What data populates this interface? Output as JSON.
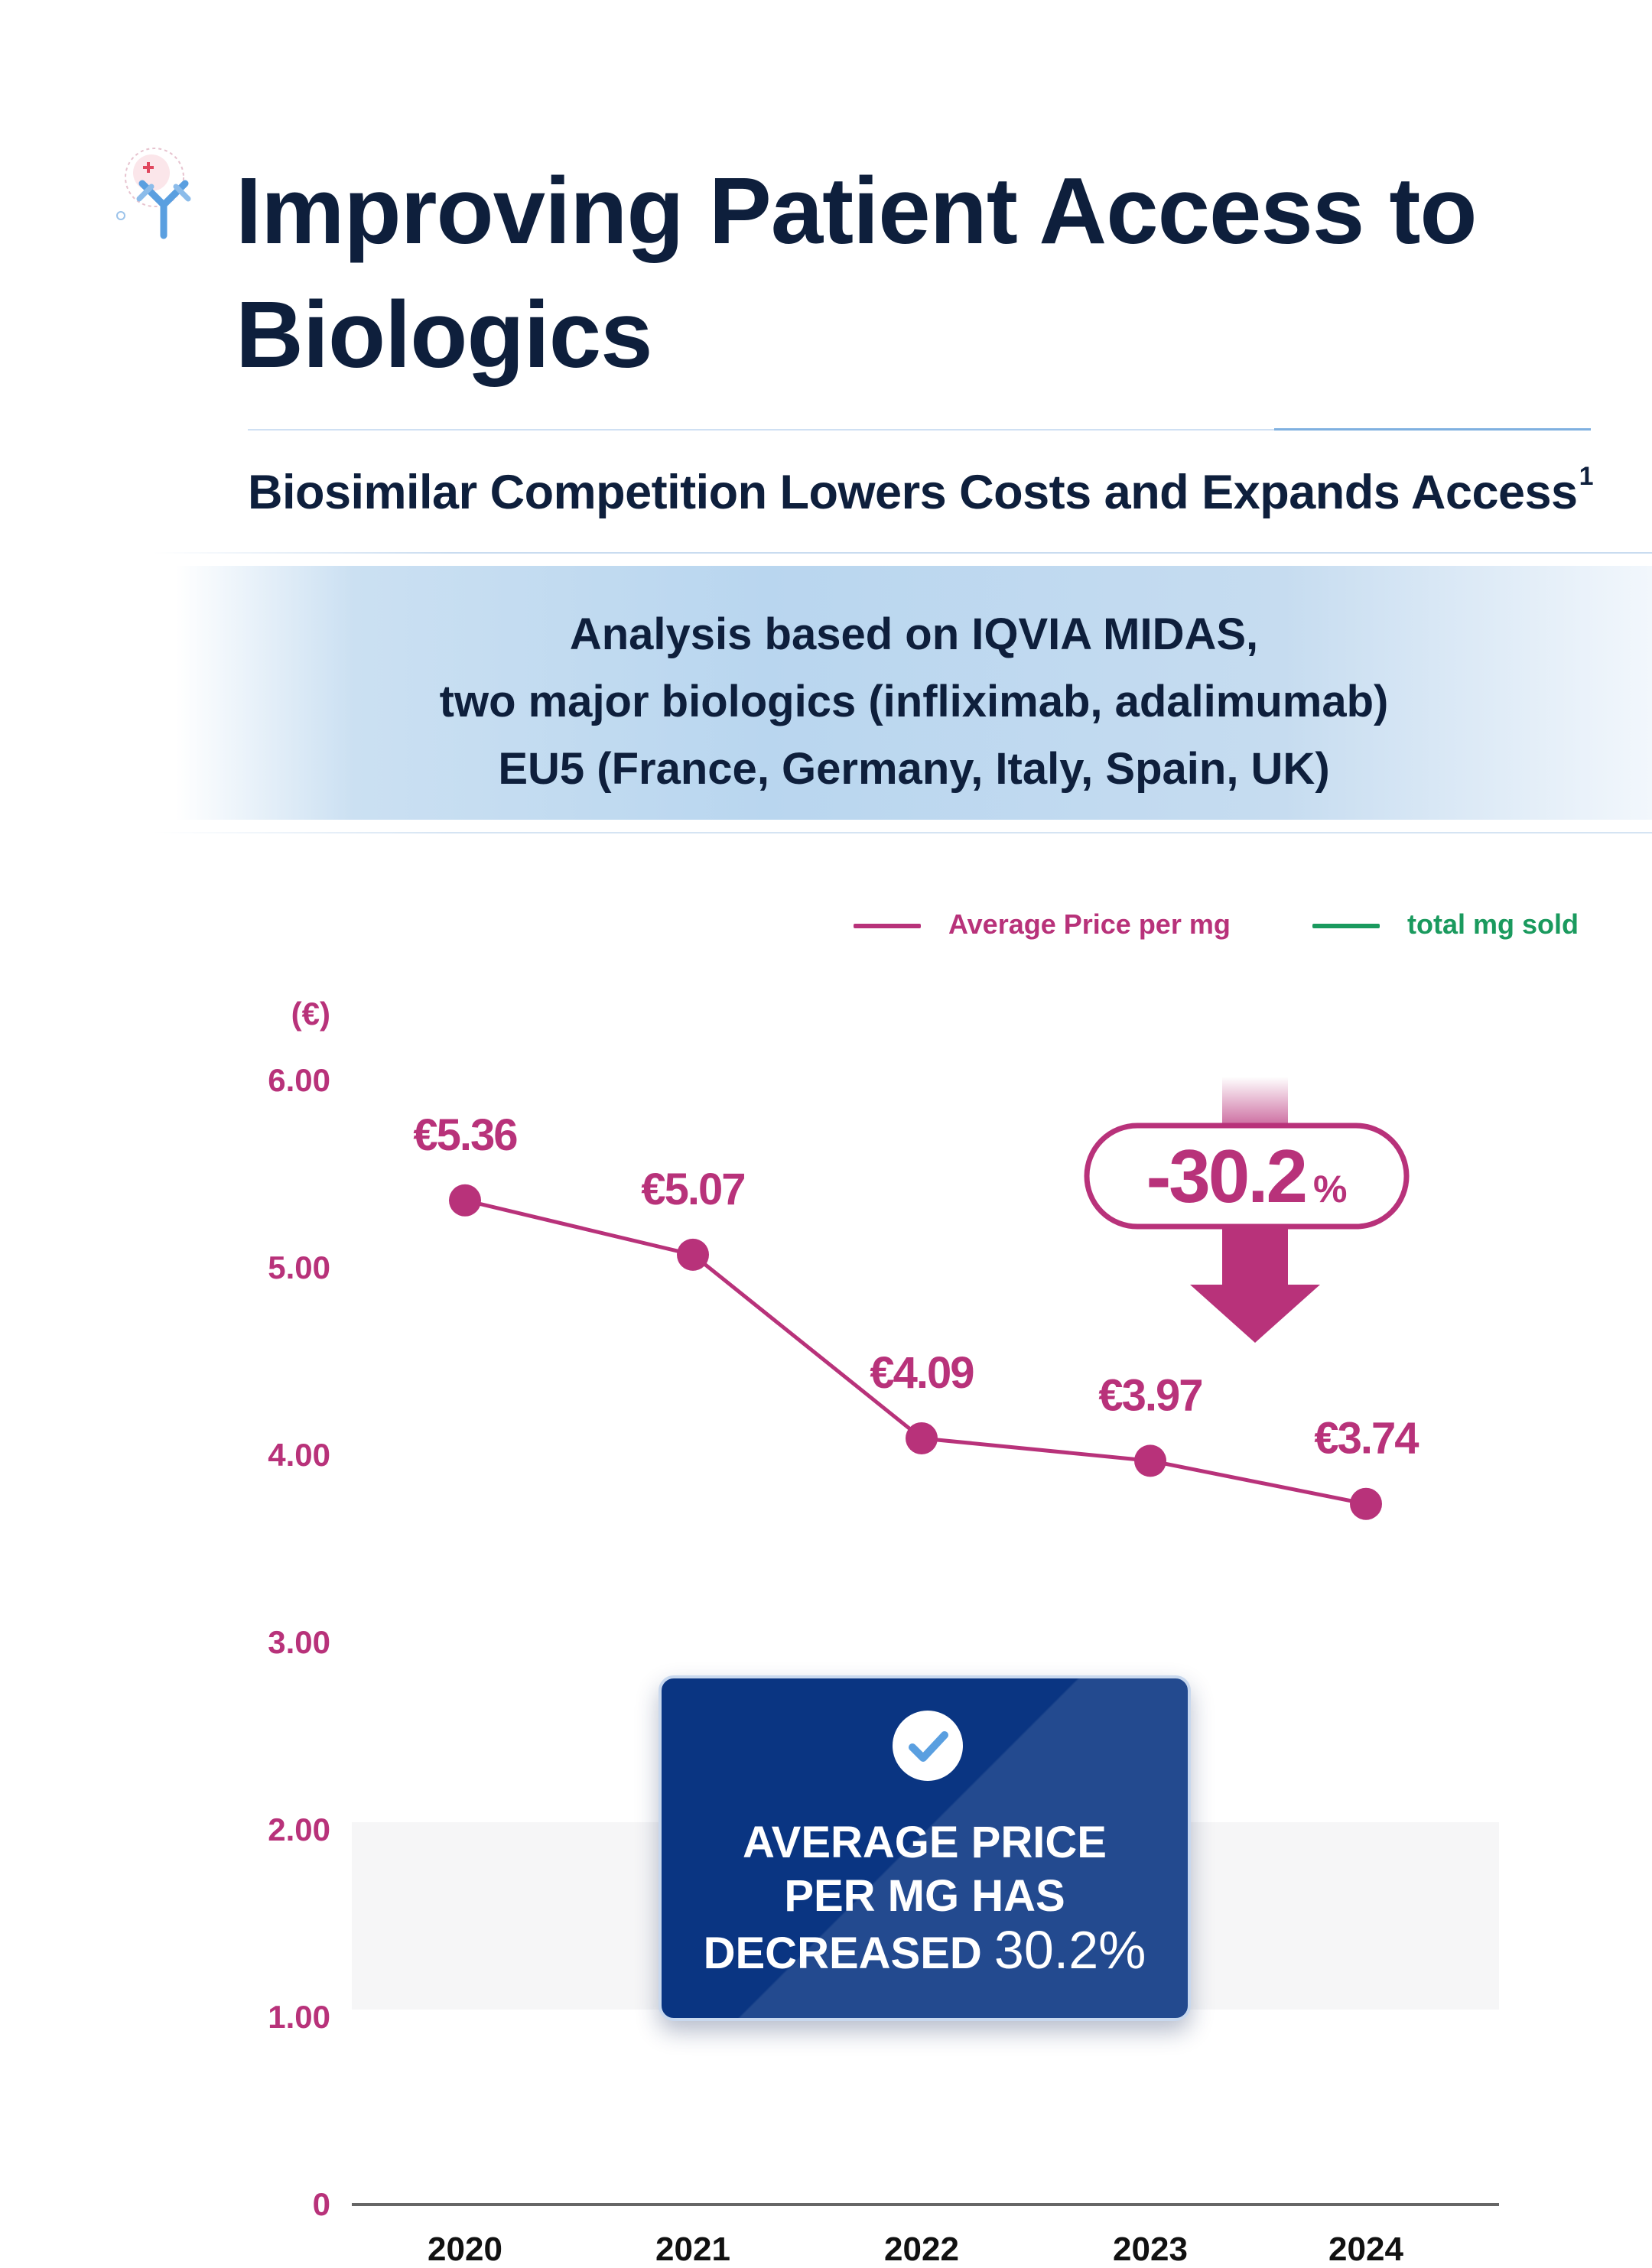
{
  "header": {
    "title_line1": "Improving Patient Access to",
    "title_line2": "Biologics",
    "subtitle": "Biosimilar Competition Lowers Costs and Expands Access",
    "footnote_mark": "1"
  },
  "banner": {
    "line1": "Analysis based on IQVIA MIDAS,",
    "line2": "two major biologics (infliximab, adalimumab)",
    "line3": "EU5 (France, Germany, Italy, Spain, UK)"
  },
  "legend": [
    {
      "label": "Average Price per mg",
      "color": "#b8327a"
    },
    {
      "label": "total mg sold",
      "color": "#1a9a5e"
    }
  ],
  "colors": {
    "price": "#b8327a",
    "volume": "#1a9a5e",
    "navy": "#0e1f3c",
    "callout": "#0a3582"
  },
  "chart_data": {
    "type": "line",
    "title": "",
    "xlabel": "",
    "ylabel": "(€)",
    "categories": [
      "2020",
      "2021",
      "2022",
      "2023",
      "2024"
    ],
    "series": [
      {
        "name": "Average Price per mg",
        "values": [
          5.36,
          5.07,
          4.09,
          3.97,
          3.74
        ],
        "labels": [
          "€5.36",
          "€5.07",
          "€4.09",
          "€3.97",
          "€3.74"
        ]
      }
    ],
    "yticks": [
      "0",
      "1.00",
      "2.00",
      "3.00",
      "4.00",
      "5.00",
      "6.00"
    ],
    "ylim": [
      0,
      6
    ],
    "annotation": {
      "value": "-30.2",
      "unit": "%"
    }
  },
  "callout": {
    "line1": "AVERAGE PRICE",
    "line2": "PER MG HAS",
    "line3_text": "DECREASED",
    "line3_pct": "30.2%",
    "icon": "check-circle-icon"
  }
}
